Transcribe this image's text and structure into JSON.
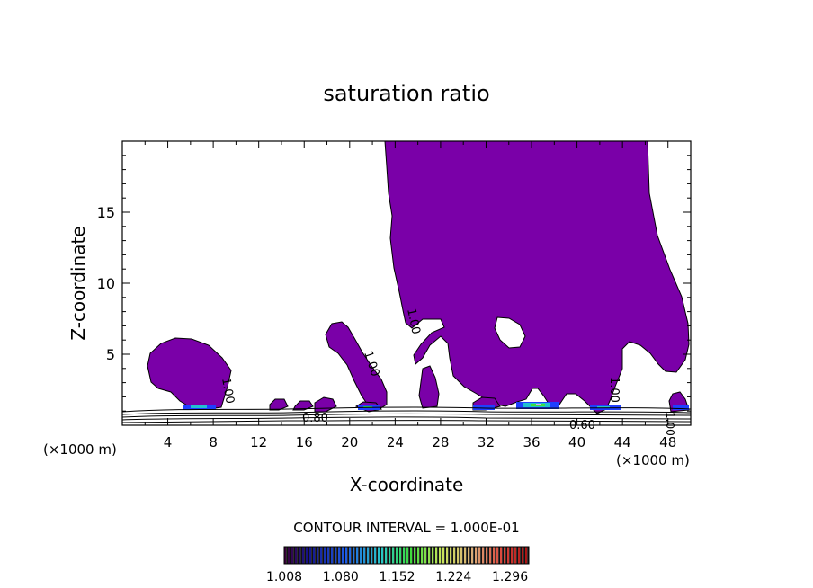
{
  "chart_data": {
    "type": "heatmap",
    "title": "saturation ratio",
    "xlabel": "X-coordinate",
    "ylabel": "Z-coordinate",
    "x_unit": "(×1000 m)",
    "xlim": [
      0,
      50
    ],
    "ylim": [
      0,
      20
    ],
    "x_ticks": [
      4,
      8,
      12,
      16,
      20,
      24,
      28,
      32,
      36,
      40,
      44,
      48
    ],
    "y_ticks": [
      5,
      10,
      15
    ],
    "contour_interval_text": "CONTOUR INTERVAL = 1.000E-01",
    "contour_labels": [
      "1.00",
      "1.00",
      "1.00",
      "1.00",
      "1.00",
      "0.80",
      "0.60"
    ],
    "colorbar": {
      "min": 1.008,
      "max": 1.32,
      "tick_values": [
        1.008,
        1.08,
        1.152,
        1.224,
        1.296
      ],
      "tick_labels": [
        "1.008",
        "1.080",
        "1.152",
        "1.224",
        "1.296"
      ]
    },
    "fill_color": "#7a00a8",
    "grid": false,
    "legend": "bottom"
  }
}
